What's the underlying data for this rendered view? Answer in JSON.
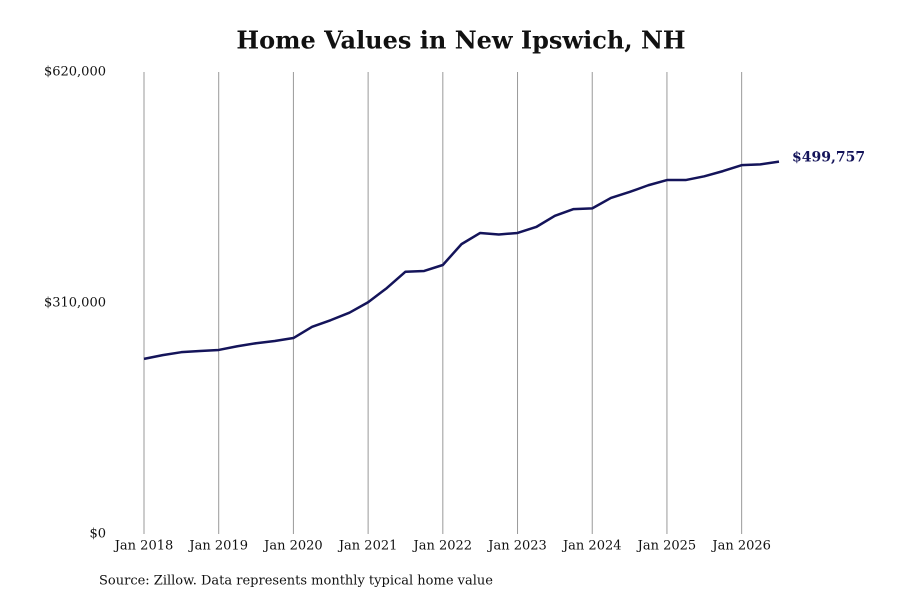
{
  "chart_data": {
    "type": "line",
    "title": "Home Values in New Ipswich, NH",
    "source": "Source: Zillow. Data represents monthly typical home value",
    "x": [
      "2018-01",
      "2018-04",
      "2018-07",
      "2018-10",
      "2019-01",
      "2019-04",
      "2019-07",
      "2019-10",
      "2020-01",
      "2020-04",
      "2020-07",
      "2020-10",
      "2021-01",
      "2021-04",
      "2021-07",
      "2021-10",
      "2022-01",
      "2022-04",
      "2022-07",
      "2022-10",
      "2023-01",
      "2023-04",
      "2023-07",
      "2023-10",
      "2024-01",
      "2024-04",
      "2024-07",
      "2024-10",
      "2025-01",
      "2025-04",
      "2025-07",
      "2025-10",
      "2026-01",
      "2026-04",
      "2026-07"
    ],
    "series": [
      {
        "name": "Home value",
        "color": "#14145a",
        "values": [
          235000,
          240000,
          244000,
          245500,
          247000,
          252000,
          256000,
          259000,
          263000,
          278000,
          287000,
          297000,
          311000,
          330000,
          352000,
          353000,
          361000,
          389000,
          404000,
          402000,
          404000,
          412000,
          427000,
          436000,
          437000,
          451000,
          459000,
          468000,
          475000,
          475000,
          480000,
          487000,
          495000,
          496000,
          499757
        ],
        "value_labels": [
          null,
          null,
          null,
          null,
          null,
          null,
          null,
          null,
          null,
          null,
          null,
          null,
          null,
          null,
          null,
          null,
          null,
          null,
          null,
          null,
          null,
          null,
          null,
          null,
          null,
          null,
          null,
          null,
          null,
          null,
          null,
          null,
          null,
          null,
          "$499,757"
        ]
      }
    ],
    "xlim": [
      "2018-01",
      "2026-07"
    ],
    "xticks": [
      {
        "value": "2018-01",
        "label": "Jan 2018"
      },
      {
        "value": "2019-01",
        "label": "Jan 2019"
      },
      {
        "value": "2020-01",
        "label": "Jan 2020"
      },
      {
        "value": "2021-01",
        "label": "Jan 2021"
      },
      {
        "value": "2022-01",
        "label": "Jan 2022"
      },
      {
        "value": "2023-01",
        "label": "Jan 2023"
      },
      {
        "value": "2024-01",
        "label": "Jan 2024"
      },
      {
        "value": "2025-01",
        "label": "Jan 2025"
      },
      {
        "value": "2026-01",
        "label": "Jan 2026"
      }
    ],
    "ylim": [
      0,
      620000
    ],
    "yticks": [
      {
        "value": 0,
        "label": "$0"
      },
      {
        "value": 310000,
        "label": "$310,000"
      },
      {
        "value": 620000,
        "label": "$620,000"
      }
    ],
    "grid": true
  }
}
